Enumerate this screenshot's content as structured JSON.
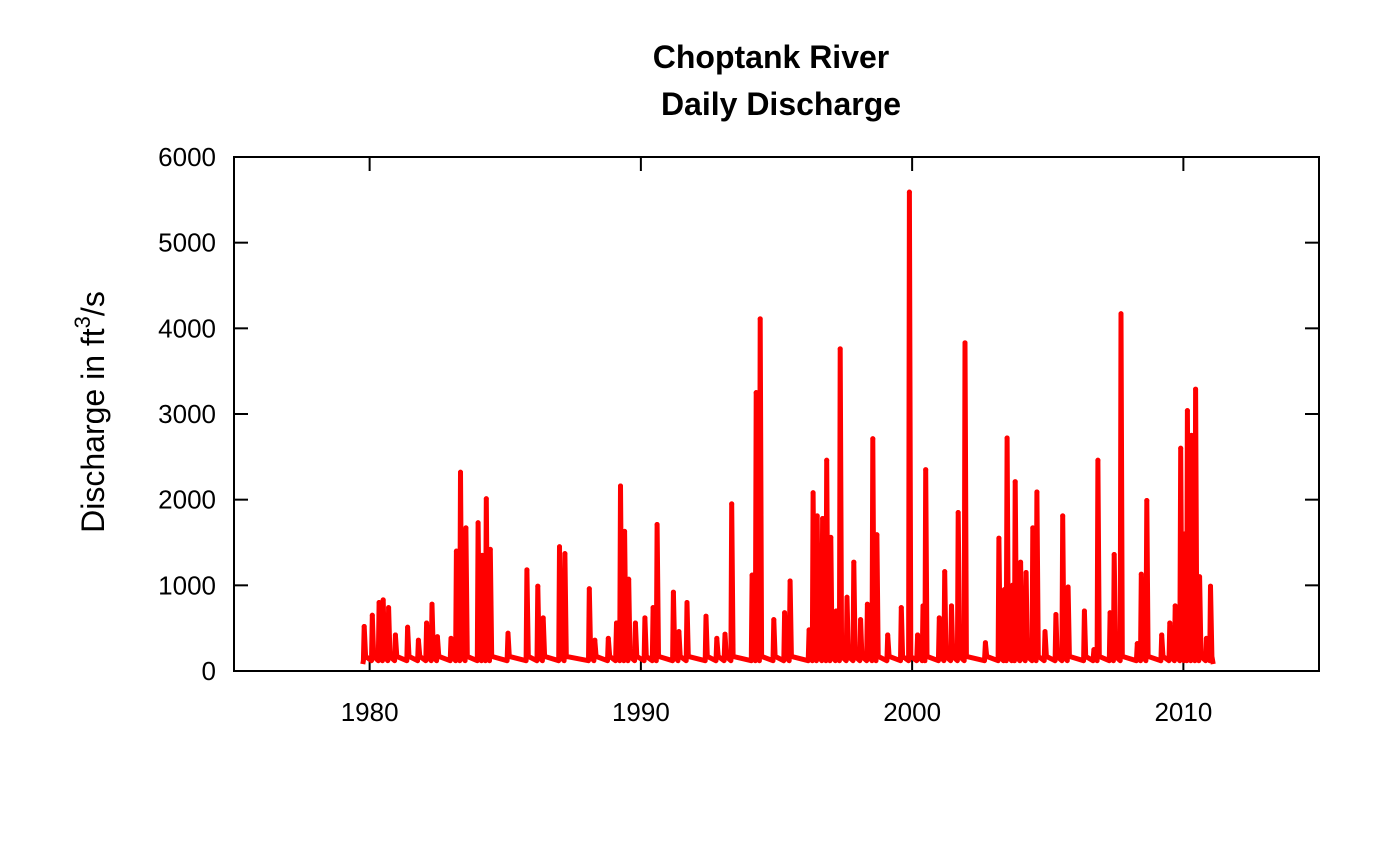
{
  "chart_data": {
    "type": "line",
    "title": "Choptank River",
    "subtitle": "Daily Discharge",
    "xlabel": "",
    "ylabel": "Discharge in ft",
    "ylabel_superscript": "3",
    "ylabel_suffix": "/s",
    "xlim": [
      1975,
      2015
    ],
    "ylim": [
      0,
      6000
    ],
    "x_ticks": [
      1980,
      1990,
      2000,
      2010
    ],
    "y_ticks": [
      0,
      1000,
      2000,
      3000,
      4000,
      5000,
      6000
    ],
    "grid": false,
    "line_color": "#ff0000",
    "series": [
      {
        "baseline": 80,
        "start_x": 1979.75,
        "end_x": 2011.1,
        "peaks": [
          {
            "x": 1979.8,
            "y": 520
          },
          {
            "x": 1980.1,
            "y": 650
          },
          {
            "x": 1980.35,
            "y": 800
          },
          {
            "x": 1980.5,
            "y": 830
          },
          {
            "x": 1980.7,
            "y": 740
          },
          {
            "x": 1980.95,
            "y": 420
          },
          {
            "x": 1981.4,
            "y": 510
          },
          {
            "x": 1981.8,
            "y": 360
          },
          {
            "x": 1982.1,
            "y": 560
          },
          {
            "x": 1982.3,
            "y": 780
          },
          {
            "x": 1982.5,
            "y": 400
          },
          {
            "x": 1983.0,
            "y": 380
          },
          {
            "x": 1983.2,
            "y": 1400
          },
          {
            "x": 1983.35,
            "y": 2320
          },
          {
            "x": 1983.55,
            "y": 1670
          },
          {
            "x": 1984.0,
            "y": 1730
          },
          {
            "x": 1984.15,
            "y": 1350
          },
          {
            "x": 1984.3,
            "y": 2010
          },
          {
            "x": 1984.45,
            "y": 1420
          },
          {
            "x": 1985.1,
            "y": 440
          },
          {
            "x": 1985.8,
            "y": 1180
          },
          {
            "x": 1986.2,
            "y": 990
          },
          {
            "x": 1986.4,
            "y": 620
          },
          {
            "x": 1987.0,
            "y": 1450
          },
          {
            "x": 1987.2,
            "y": 1370
          },
          {
            "x": 1988.1,
            "y": 960
          },
          {
            "x": 1988.3,
            "y": 360
          },
          {
            "x": 1988.8,
            "y": 380
          },
          {
            "x": 1989.1,
            "y": 560
          },
          {
            "x": 1989.25,
            "y": 2160
          },
          {
            "x": 1989.4,
            "y": 1630
          },
          {
            "x": 1989.55,
            "y": 1070
          },
          {
            "x": 1989.8,
            "y": 560
          },
          {
            "x": 1990.15,
            "y": 620
          },
          {
            "x": 1990.45,
            "y": 740
          },
          {
            "x": 1990.6,
            "y": 1710
          },
          {
            "x": 1991.2,
            "y": 920
          },
          {
            "x": 1991.4,
            "y": 460
          },
          {
            "x": 1991.7,
            "y": 800
          },
          {
            "x": 1992.4,
            "y": 640
          },
          {
            "x": 1992.8,
            "y": 380
          },
          {
            "x": 1993.1,
            "y": 430
          },
          {
            "x": 1993.35,
            "y": 1950
          },
          {
            "x": 1994.1,
            "y": 1120
          },
          {
            "x": 1994.25,
            "y": 3250
          },
          {
            "x": 1994.4,
            "y": 4110
          },
          {
            "x": 1994.9,
            "y": 600
          },
          {
            "x": 1995.3,
            "y": 680
          },
          {
            "x": 1995.5,
            "y": 1050
          },
          {
            "x": 1996.2,
            "y": 480
          },
          {
            "x": 1996.35,
            "y": 2080
          },
          {
            "x": 1996.5,
            "y": 1810
          },
          {
            "x": 1996.7,
            "y": 1780
          },
          {
            "x": 1996.85,
            "y": 2460
          },
          {
            "x": 1997.0,
            "y": 1560
          },
          {
            "x": 1997.2,
            "y": 700
          },
          {
            "x": 1997.35,
            "y": 3760
          },
          {
            "x": 1997.6,
            "y": 860
          },
          {
            "x": 1997.85,
            "y": 1270
          },
          {
            "x": 1998.1,
            "y": 600
          },
          {
            "x": 1998.35,
            "y": 780
          },
          {
            "x": 1998.55,
            "y": 2710
          },
          {
            "x": 1998.7,
            "y": 1590
          },
          {
            "x": 1999.1,
            "y": 420
          },
          {
            "x": 1999.6,
            "y": 740
          },
          {
            "x": 1999.9,
            "y": 5590
          },
          {
            "x": 2000.2,
            "y": 420
          },
          {
            "x": 2000.4,
            "y": 760
          },
          {
            "x": 2000.5,
            "y": 2350
          },
          {
            "x": 2001.0,
            "y": 620
          },
          {
            "x": 2001.2,
            "y": 1160
          },
          {
            "x": 2001.45,
            "y": 760
          },
          {
            "x": 2001.7,
            "y": 1850
          },
          {
            "x": 2001.95,
            "y": 3830
          },
          {
            "x": 2002.7,
            "y": 330
          },
          {
            "x": 2003.2,
            "y": 1550
          },
          {
            "x": 2003.4,
            "y": 950
          },
          {
            "x": 2003.5,
            "y": 2720
          },
          {
            "x": 2003.7,
            "y": 1000
          },
          {
            "x": 2003.8,
            "y": 2210
          },
          {
            "x": 2004.0,
            "y": 1270
          },
          {
            "x": 2004.2,
            "y": 1150
          },
          {
            "x": 2004.45,
            "y": 1670
          },
          {
            "x": 2004.6,
            "y": 2090
          },
          {
            "x": 2004.9,
            "y": 460
          },
          {
            "x": 2005.3,
            "y": 660
          },
          {
            "x": 2005.55,
            "y": 1810
          },
          {
            "x": 2005.75,
            "y": 980
          },
          {
            "x": 2006.35,
            "y": 700
          },
          {
            "x": 2006.7,
            "y": 250
          },
          {
            "x": 2006.85,
            "y": 2460
          },
          {
            "x": 2007.3,
            "y": 680
          },
          {
            "x": 2007.45,
            "y": 1360
          },
          {
            "x": 2007.7,
            "y": 4170
          },
          {
            "x": 2008.3,
            "y": 320
          },
          {
            "x": 2008.45,
            "y": 1130
          },
          {
            "x": 2008.65,
            "y": 1990
          },
          {
            "x": 2009.2,
            "y": 420
          },
          {
            "x": 2009.5,
            "y": 560
          },
          {
            "x": 2009.7,
            "y": 760
          },
          {
            "x": 2009.9,
            "y": 2600
          },
          {
            "x": 2010.05,
            "y": 1600
          },
          {
            "x": 2010.15,
            "y": 3040
          },
          {
            "x": 2010.3,
            "y": 2750
          },
          {
            "x": 2010.45,
            "y": 3290
          },
          {
            "x": 2010.6,
            "y": 1100
          },
          {
            "x": 2010.85,
            "y": 380
          },
          {
            "x": 2011.0,
            "y": 990
          }
        ]
      }
    ]
  }
}
